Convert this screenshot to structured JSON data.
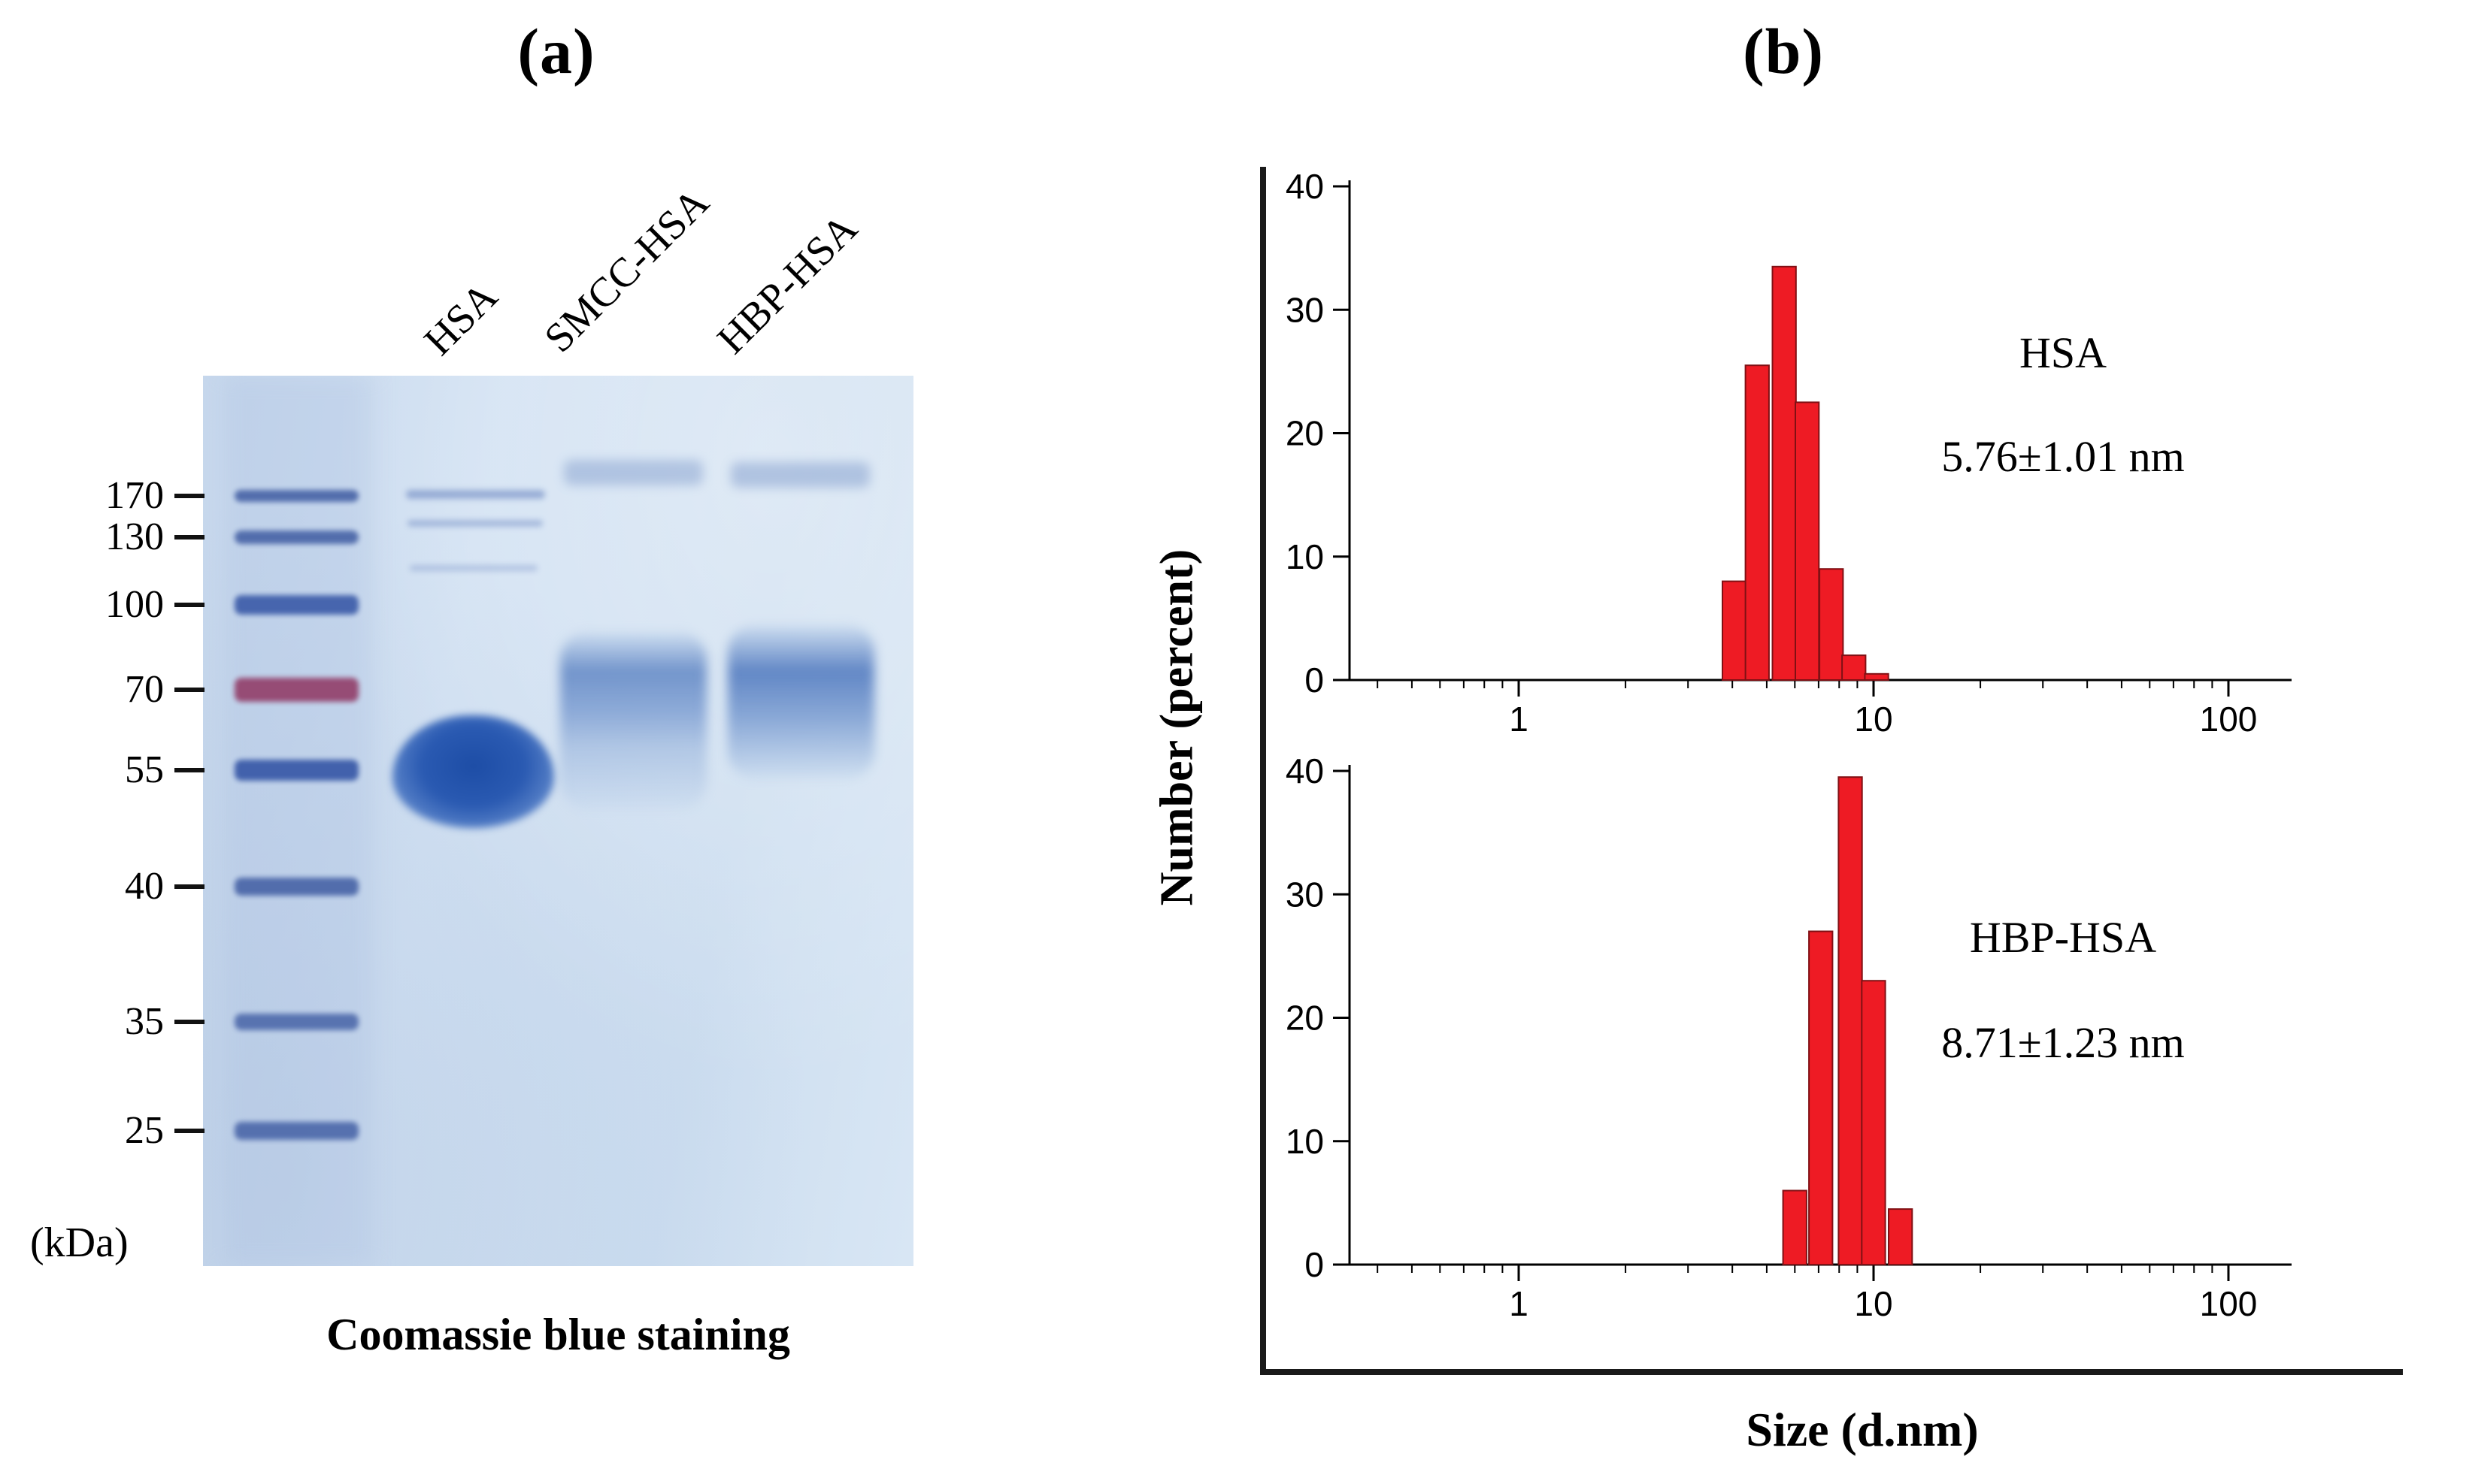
{
  "figure": {
    "panel_a_label": "(a)",
    "panel_b_label": "(b)"
  },
  "gel": {
    "unit_label": "(kDa)",
    "caption": "Coomassie blue staining",
    "lane_labels": [
      "HSA",
      "SMCC-HSA",
      "HBP-HSA"
    ],
    "ladder_labels": [
      "170",
      "130",
      "100",
      "70",
      "55",
      "40",
      "35",
      "25"
    ],
    "stain_blue": "#3c5ca9",
    "stain_70kda": "#94456f"
  },
  "dls": {
    "y_axis_label": "Number (percent)",
    "x_axis_label": "Size (d.nm)"
  },
  "chart_data": [
    {
      "type": "bar",
      "series_label": "HSA",
      "annotation": "5.76±1.01 nm",
      "x_scale": "log",
      "xlabel": "Size (d.nm)",
      "ylabel": "Number (percent)",
      "xlim": [
        0.33,
        150
      ],
      "ylim": [
        0,
        40
      ],
      "x_ticks": [
        1,
        10,
        100
      ],
      "y_ticks": [
        0,
        10,
        20,
        30,
        40
      ],
      "bar_color": "#ee1b24",
      "bar_edge_color": "#801014",
      "bars": [
        {
          "size": 4.05,
          "value": 8
        },
        {
          "size": 4.7,
          "value": 25.5
        },
        {
          "size": 5.6,
          "value": 33.5
        },
        {
          "size": 6.5,
          "value": 22.5
        },
        {
          "size": 7.6,
          "value": 9
        },
        {
          "size": 8.8,
          "value": 2
        },
        {
          "size": 10.2,
          "value": 0.5
        }
      ]
    },
    {
      "type": "bar",
      "series_label": "HBP-HSA",
      "annotation": "8.71±1.23 nm",
      "x_scale": "log",
      "xlabel": "Size (d.nm)",
      "ylabel": "Number (percent)",
      "xlim": [
        0.33,
        150
      ],
      "ylim": [
        0,
        40
      ],
      "x_ticks": [
        1,
        10,
        100
      ],
      "y_ticks": [
        0,
        10,
        20,
        30,
        40
      ],
      "bar_color": "#ee1b24",
      "bar_edge_color": "#801014",
      "bars": [
        {
          "size": 6.0,
          "value": 6
        },
        {
          "size": 7.1,
          "value": 27
        },
        {
          "size": 8.6,
          "value": 39.5
        },
        {
          "size": 10.0,
          "value": 23
        },
        {
          "size": 11.9,
          "value": 4.5
        }
      ]
    }
  ]
}
